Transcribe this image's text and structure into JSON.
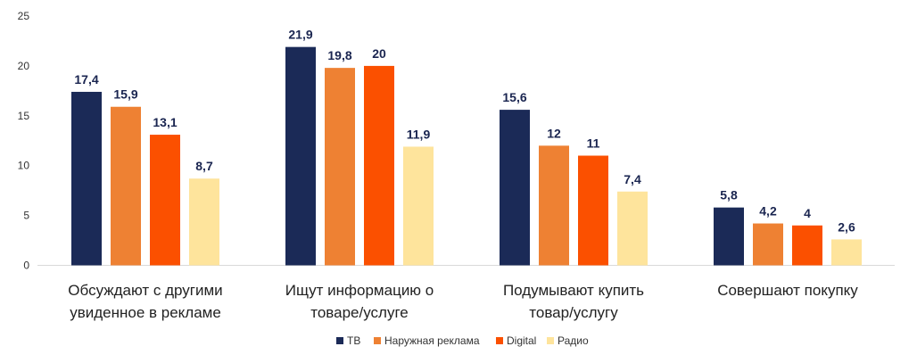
{
  "chart_data": {
    "type": "bar",
    "categories": [
      [
        "Обсуждают с другими",
        "увиденное в рекламе"
      ],
      [
        "Ищут информацию о",
        "товаре/услуге"
      ],
      [
        "Подумывают купить",
        "товар/услугу"
      ],
      [
        "Совершают покупку"
      ]
    ],
    "series": [
      {
        "name": "ТВ",
        "color": "#1b2a57",
        "values": [
          17.4,
          21.9,
          15.6,
          5.8
        ],
        "labels": [
          "17,4",
          "21,9",
          "15,6",
          "5,8"
        ]
      },
      {
        "name": "Наружная реклама",
        "color": "#ee8133",
        "values": [
          15.9,
          19.8,
          12,
          4.2
        ],
        "labels": [
          "15,9",
          "19,8",
          "12",
          "4,2"
        ]
      },
      {
        "name": "Digital",
        "color": "#fb5000",
        "values": [
          13.1,
          20,
          11,
          4
        ],
        "labels": [
          "13,1",
          "20",
          "11",
          "4"
        ]
      },
      {
        "name": "Радио",
        "color": "#fee49c",
        "values": [
          8.7,
          11.9,
          7.4,
          2.6
        ],
        "labels": [
          "8,7",
          "11,9",
          "7,4",
          "2,6"
        ]
      }
    ],
    "yticks": [
      "0",
      "5",
      "10",
      "15",
      "20",
      "25"
    ],
    "ylim": [
      0,
      25
    ],
    "title": "",
    "xlabel": "",
    "ylabel": "",
    "legend_position": "bottom"
  }
}
